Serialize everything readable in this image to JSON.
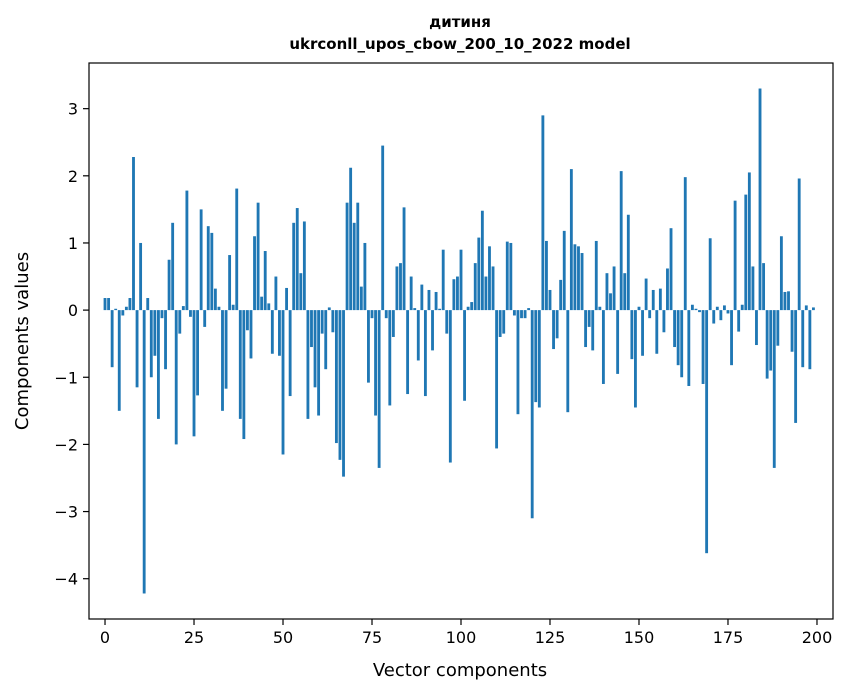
{
  "chart_data": {
    "type": "bar",
    "title_line1": "дитиня",
    "title_line2": "ukrconll_upos_cbow_200_10_2022 model",
    "xlabel": "Vector components",
    "ylabel": "Components values",
    "xlim": [
      -4.5,
      204.5
    ],
    "ylim": [
      -4.6,
      3.68
    ],
    "xticks": [
      0,
      25,
      50,
      75,
      100,
      125,
      150,
      175,
      200
    ],
    "yticks": [
      -4,
      -3,
      -2,
      -1,
      0,
      1,
      2,
      3
    ],
    "bar_color": "#1f77b4",
    "values": [
      0.18,
      0.18,
      -0.85,
      0.02,
      -1.5,
      -0.08,
      0.05,
      0.18,
      2.28,
      -1.15,
      1.0,
      -4.22,
      0.18,
      -1.0,
      -0.68,
      -1.62,
      -0.12,
      -0.88,
      0.75,
      1.3,
      -2.0,
      -0.35,
      0.06,
      1.78,
      -0.1,
      -1.88,
      -1.27,
      1.5,
      -0.25,
      1.25,
      1.15,
      0.32,
      0.05,
      -1.5,
      -1.17,
      0.82,
      0.08,
      1.81,
      -1.62,
      -1.92,
      -0.3,
      -0.72,
      1.1,
      1.6,
      0.2,
      0.88,
      0.1,
      -0.65,
      0.5,
      -0.68,
      -2.15,
      0.33,
      -1.28,
      1.3,
      1.52,
      0.55,
      1.32,
      -1.62,
      -0.55,
      -1.15,
      -1.57,
      -0.35,
      -0.88,
      0.04,
      -0.33,
      -1.98,
      -2.23,
      -2.48,
      1.6,
      2.12,
      1.3,
      1.6,
      0.35,
      1.0,
      -1.08,
      -0.12,
      -1.57,
      -2.35,
      2.45,
      -0.12,
      -1.42,
      -0.4,
      0.65,
      0.7,
      1.53,
      -1.25,
      0.5,
      0.03,
      -0.75,
      0.38,
      -1.28,
      0.3,
      -0.6,
      0.27,
      0.02,
      0.9,
      -0.35,
      -2.27,
      0.46,
      0.5,
      0.9,
      -1.35,
      0.05,
      0.12,
      0.7,
      1.08,
      1.48,
      0.5,
      0.95,
      0.65,
      -2.06,
      -0.4,
      -0.35,
      1.02,
      1.0,
      -0.08,
      -1.55,
      -0.12,
      -0.12,
      0.03,
      -3.1,
      -1.37,
      -1.45,
      2.9,
      1.03,
      0.3,
      -0.58,
      -0.42,
      0.45,
      1.18,
      -1.52,
      2.1,
      0.98,
      0.95,
      0.85,
      -0.55,
      -0.25,
      -0.6,
      1.03,
      0.05,
      -1.1,
      0.55,
      0.25,
      0.65,
      -0.95,
      2.07,
      0.55,
      1.42,
      -0.73,
      -1.45,
      0.05,
      -0.68,
      0.47,
      -0.12,
      0.3,
      -0.65,
      0.32,
      -0.33,
      0.62,
      1.22,
      -0.55,
      -0.82,
      -1.0,
      1.98,
      -1.13,
      0.08,
      0.02,
      -0.03,
      -1.1,
      -3.62,
      1.07,
      -0.2,
      0.05,
      -0.15,
      0.07,
      -0.05,
      -0.82,
      1.63,
      -0.32,
      0.08,
      1.72,
      2.05,
      0.65,
      -0.52,
      3.3,
      0.7,
      -1.02,
      -0.9,
      -2.35,
      -0.53,
      1.1,
      0.27,
      0.28,
      -0.62,
      -1.68,
      1.96,
      -0.85,
      0.07,
      -0.88,
      0.04
    ]
  }
}
